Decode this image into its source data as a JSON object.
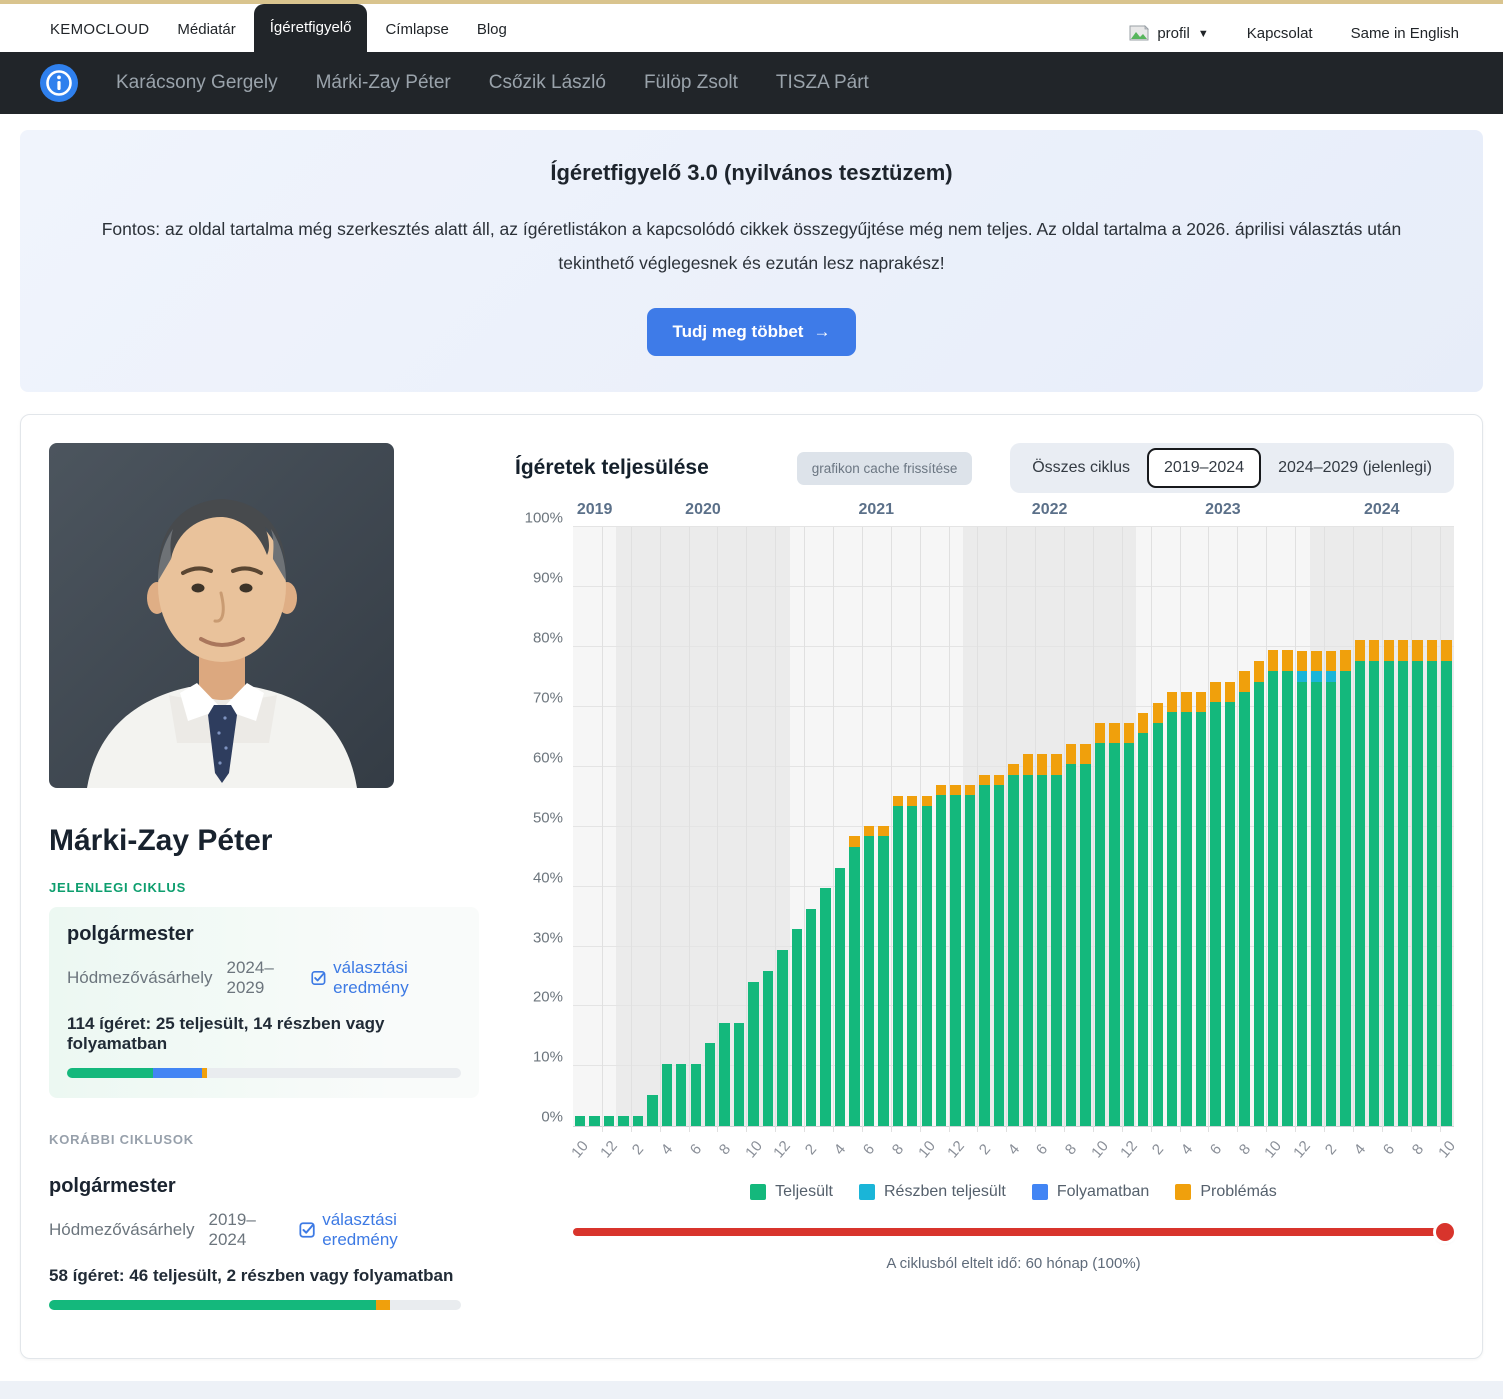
{
  "page": {
    "top_strip_color": "#d9c48e"
  },
  "navbar_top": {
    "brand": "KEMOCLOUD",
    "items": [
      {
        "label": "Médiatár",
        "active": false
      },
      {
        "label": "Ígéretfigyelő",
        "active": true
      },
      {
        "label": "Címlapse",
        "active": false
      },
      {
        "label": "Blog",
        "active": false
      }
    ],
    "right": {
      "profile_label": "profil",
      "contact_label": "Kapcsolat",
      "language_label": "Same in English"
    }
  },
  "navbar_politicians": {
    "items": [
      "Karácsony Gergely",
      "Márki-Zay Péter",
      "Csőzik László",
      "Fülöp Zsolt",
      "TISZA Párt"
    ]
  },
  "hero": {
    "title": "Ígéretfigyelő 3.0 (nyilvános tesztüzem)",
    "body": "Fontos: az oldal tartalma még szerkesztés alatt áll, az ígéretlistákon a kapcsolódó cikkek összegyűjtése még nem teljes. Az oldal tartalma a 2026. áprilisi választás után tekinthető véglegesnek és ezután lesz naprakész!",
    "cta_label": "Tudj meg többet",
    "cta_color": "#3e7be8"
  },
  "profile": {
    "name": "Márki-Zay Péter",
    "current_cycle_label": "JELENLEGI CIKLUS",
    "previous_cycles_label": "KORÁBBI CIKLUSOK",
    "cycles": [
      {
        "position": "polgármester",
        "place": "Hódmezővásárhely",
        "term": "2024–2029",
        "link_label": "választási eredmény",
        "stat": "114 ígéret: 25 teljesült, 14 részben vagy folyamatban",
        "bar_segments": [
          {
            "name": "teljesült",
            "color": "#14b87c",
            "pct": 21.9
          },
          {
            "name": "részben vagy folyamatban",
            "color": "#4285f4",
            "pct": 12.3
          },
          {
            "name": "problémás",
            "color": "#f0a00c",
            "pct": 1.3
          }
        ]
      },
      {
        "position": "polgármester",
        "place": "Hódmezővásárhely",
        "term": "2019–2024",
        "link_label": "választási eredmény",
        "stat": "58 ígéret: 46 teljesült, 2 részben vagy folyamatban",
        "bar_segments": [
          {
            "name": "teljesült",
            "color": "#14b87c",
            "pct": 79.3
          },
          {
            "name": "problémás",
            "color": "#f0a00c",
            "pct": 3.4
          }
        ]
      }
    ]
  },
  "chart": {
    "title": "Ígéretek teljesülése",
    "cache_button_label": "grafikon cache frissítése",
    "range_tabs": [
      {
        "label": "Összes ciklus",
        "active": false
      },
      {
        "label": "2019–2024",
        "active": true
      },
      {
        "label": "2024–2029 (jelenlegi)",
        "active": false
      }
    ],
    "slider_color": "#d8342c",
    "slider_value_pct": 100,
    "elapsed_caption": "A ciklusból eltelt idő: 60 hónap (100%)"
  },
  "chart_data": {
    "type": "bar",
    "stacked": true,
    "title": "Ígéretek teljesülése",
    "ylim": [
      0,
      100
    ],
    "ytick_step": 10,
    "ytick_suffix": "%",
    "grid": true,
    "legend_position": "bottom",
    "year_bands": [
      2019,
      2020,
      2021,
      2022,
      2023,
      2024
    ],
    "months": [
      "2019-10",
      "2019-11",
      "2019-12",
      "2020-01",
      "2020-02",
      "2020-03",
      "2020-04",
      "2020-05",
      "2020-06",
      "2020-07",
      "2020-08",
      "2020-09",
      "2020-10",
      "2020-11",
      "2020-12",
      "2021-01",
      "2021-02",
      "2021-03",
      "2021-04",
      "2021-05",
      "2021-06",
      "2021-07",
      "2021-08",
      "2021-09",
      "2021-10",
      "2021-11",
      "2021-12",
      "2022-01",
      "2022-02",
      "2022-03",
      "2022-04",
      "2022-05",
      "2022-06",
      "2022-07",
      "2022-08",
      "2022-09",
      "2022-10",
      "2022-11",
      "2022-12",
      "2023-01",
      "2023-02",
      "2023-03",
      "2023-04",
      "2023-05",
      "2023-06",
      "2023-07",
      "2023-08",
      "2023-09",
      "2023-10",
      "2023-11",
      "2023-12",
      "2024-01",
      "2024-02",
      "2024-03",
      "2024-04",
      "2024-05",
      "2024-06",
      "2024-07",
      "2024-08",
      "2024-09",
      "2024-10"
    ],
    "series": [
      {
        "name": "Teljesült",
        "color": "#14b87c",
        "values": [
          1.7,
          1.7,
          1.7,
          1.7,
          1.7,
          5.2,
          10.3,
          10.3,
          10.3,
          13.8,
          17.2,
          17.2,
          24.1,
          25.9,
          29.3,
          32.8,
          36.2,
          39.7,
          43.1,
          46.6,
          48.3,
          48.3,
          53.4,
          53.4,
          53.4,
          55.2,
          55.2,
          55.2,
          56.9,
          56.9,
          58.6,
          58.6,
          58.6,
          58.6,
          60.3,
          60.3,
          63.8,
          63.8,
          63.8,
          65.5,
          67.2,
          69,
          69,
          69,
          70.7,
          70.7,
          72.4,
          74.1,
          75.9,
          75.9,
          74.1,
          74.1,
          74.1,
          75.9,
          77.6,
          77.6,
          77.6,
          77.6,
          77.6,
          77.6,
          77.6
        ]
      },
      {
        "name": "Részben teljesült",
        "color": "#1ab5d8",
        "values": [
          0,
          0,
          0,
          0,
          0,
          0,
          0,
          0,
          0,
          0,
          0,
          0,
          0,
          0,
          0,
          0,
          0,
          0,
          0,
          0,
          0,
          0,
          0,
          0,
          0,
          0,
          0,
          0,
          0,
          0,
          0,
          0,
          0,
          0,
          0,
          0,
          0,
          0,
          0,
          0,
          0,
          0,
          0,
          0,
          0,
          0,
          0,
          0,
          0,
          0,
          1.7,
          1.7,
          1.7,
          0,
          0,
          0,
          0,
          0,
          0,
          0,
          0
        ]
      },
      {
        "name": "Folyamatban",
        "color": "#4285f4",
        "values": [
          0,
          0,
          0,
          0,
          0,
          0,
          0,
          0,
          0,
          0,
          0,
          0,
          0,
          0,
          0,
          0,
          0,
          0,
          0,
          0,
          0,
          0,
          0,
          0,
          0,
          0,
          0,
          0,
          0,
          0,
          0,
          0,
          0,
          0,
          0,
          0,
          0,
          0,
          0,
          0,
          0,
          0,
          0,
          0,
          0,
          0,
          0,
          0,
          0,
          0,
          0,
          0,
          0,
          0,
          0,
          0,
          0,
          0,
          0,
          0,
          0
        ]
      },
      {
        "name": "Problémás",
        "color": "#f0a00c",
        "values": [
          0,
          0,
          0,
          0,
          0,
          0,
          0,
          0,
          0,
          0,
          0,
          0,
          0,
          0,
          0,
          0,
          0,
          0,
          0,
          1.7,
          1.7,
          1.7,
          1.7,
          1.7,
          1.7,
          1.7,
          1.7,
          1.7,
          1.7,
          1.7,
          1.7,
          3.4,
          3.4,
          3.4,
          3.4,
          3.4,
          3.4,
          3.4,
          3.4,
          3.4,
          3.4,
          3.4,
          3.4,
          3.4,
          3.4,
          3.4,
          3.4,
          3.4,
          3.4,
          3.4,
          3.4,
          3.4,
          3.4,
          3.4,
          3.4,
          3.4,
          3.4,
          3.4,
          3.4,
          3.4,
          3.4
        ]
      }
    ]
  }
}
